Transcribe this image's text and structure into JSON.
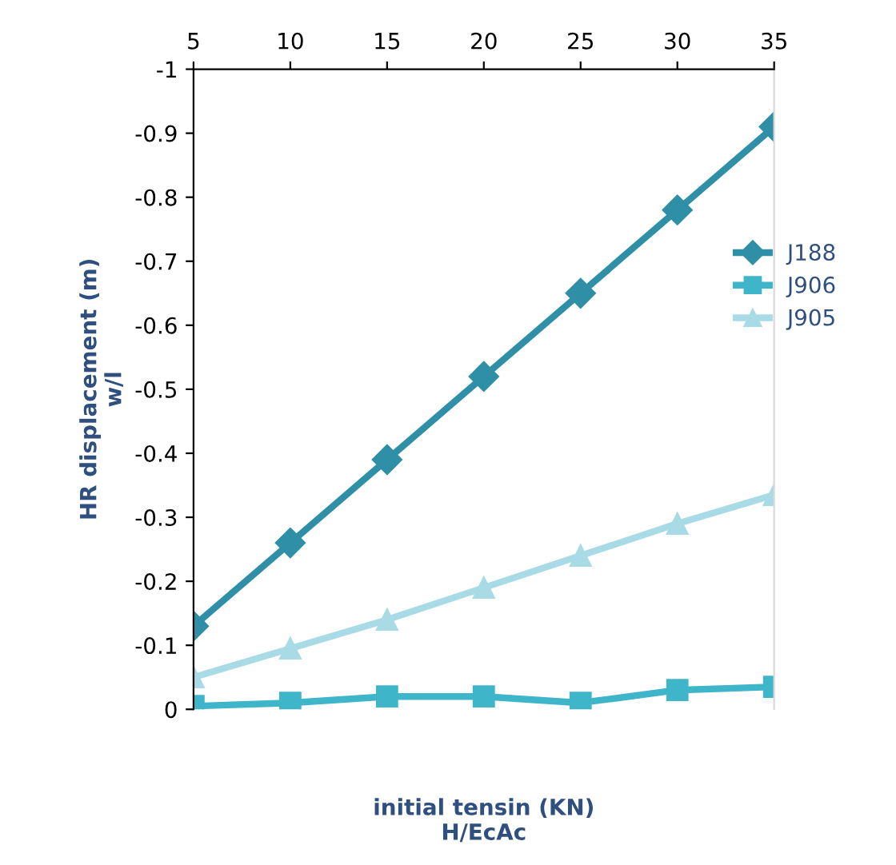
{
  "chart_data": {
    "type": "line",
    "xlabel": "initial tensin (KN)\nH/EcAc",
    "ylabel": "HR displacement (m)\nw/l",
    "x": [
      5,
      10,
      15,
      20,
      25,
      30,
      35
    ],
    "series": [
      {
        "name": "J188",
        "color": "#2e8fa6",
        "marker": "diamond",
        "values": [
          -0.13,
          -0.26,
          -0.39,
          -0.52,
          -0.65,
          -0.78,
          -0.91
        ]
      },
      {
        "name": "J906",
        "color": "#3fb5c9",
        "marker": "square",
        "values": [
          -0.005,
          -0.01,
          -0.02,
          -0.02,
          -0.01,
          -0.03,
          -0.035
        ]
      },
      {
        "name": "J905",
        "color": "#a9dbe6",
        "marker": "triangle",
        "values": [
          -0.05,
          -0.095,
          -0.14,
          -0.19,
          -0.24,
          -0.29,
          -0.335
        ]
      }
    ],
    "xlim": [
      5,
      35
    ],
    "xticks": [
      5,
      10,
      15,
      20,
      25,
      30,
      35
    ],
    "ylim": [
      0,
      -1
    ],
    "yticks": [
      -1,
      -0.9,
      -0.8,
      -0.7,
      -0.6,
      -0.5,
      -0.4,
      -0.3,
      -0.2,
      -0.1,
      0
    ],
    "grid": false,
    "legend": "right",
    "line_style": "solid"
  }
}
